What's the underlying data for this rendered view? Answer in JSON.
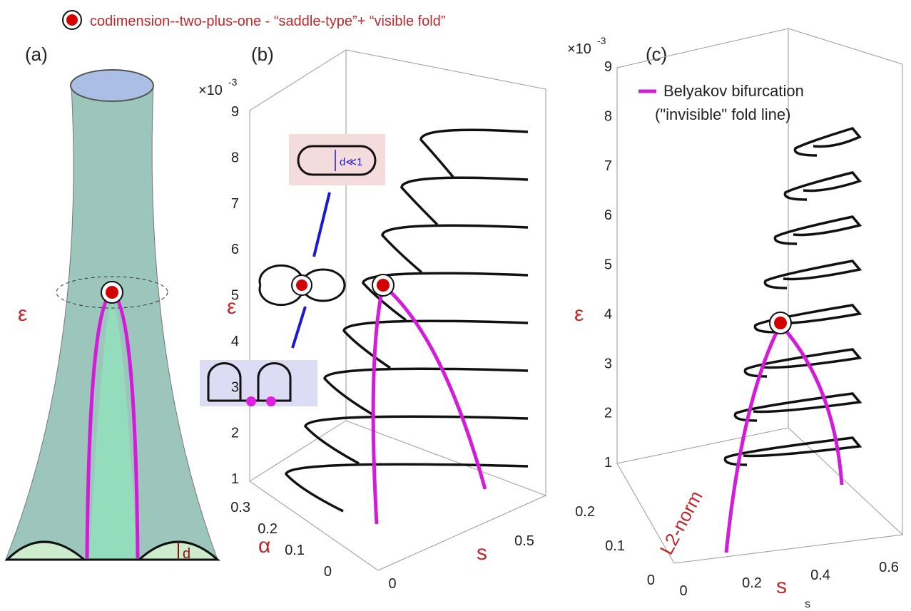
{
  "header": {
    "legend": "codimension--two-plus-one - “saddle-type”+ “visible fold”"
  },
  "panels": [
    {
      "label": "(a)",
      "axis_label": "ε",
      "annotation": "d"
    },
    {
      "label": "(b)",
      "exponent_base": "×10",
      "exponent": "-3",
      "z_ticks": [
        "1",
        "2",
        "3",
        "4",
        "5",
        "6",
        "7",
        "8",
        "9"
      ],
      "z_label": "ε",
      "alpha_ticks": [
        "0",
        "0.1",
        "0.2",
        "0.3"
      ],
      "alpha_label": "α",
      "s_ticks": [
        "0",
        "0.5"
      ],
      "s_label": "s",
      "inset_label": "d≪1"
    },
    {
      "label": "(c)",
      "exponent_base": "×10",
      "exponent": "-3",
      "legend_line1": "Belyakov bifurcation",
      "legend_line2": "(\"invisible\" fold line)",
      "z_ticks": [
        "1",
        "2",
        "3",
        "4",
        "5",
        "6",
        "7",
        "8",
        "9"
      ],
      "z_label": "ε",
      "l2_ticks": [
        "0",
        "0.1",
        "0.2"
      ],
      "l2_label": "L2-norm",
      "s_ticks": [
        "0",
        "0.2",
        "0.4",
        "0.6"
      ],
      "s_label": "s",
      "s_subscript": "s"
    }
  ]
}
